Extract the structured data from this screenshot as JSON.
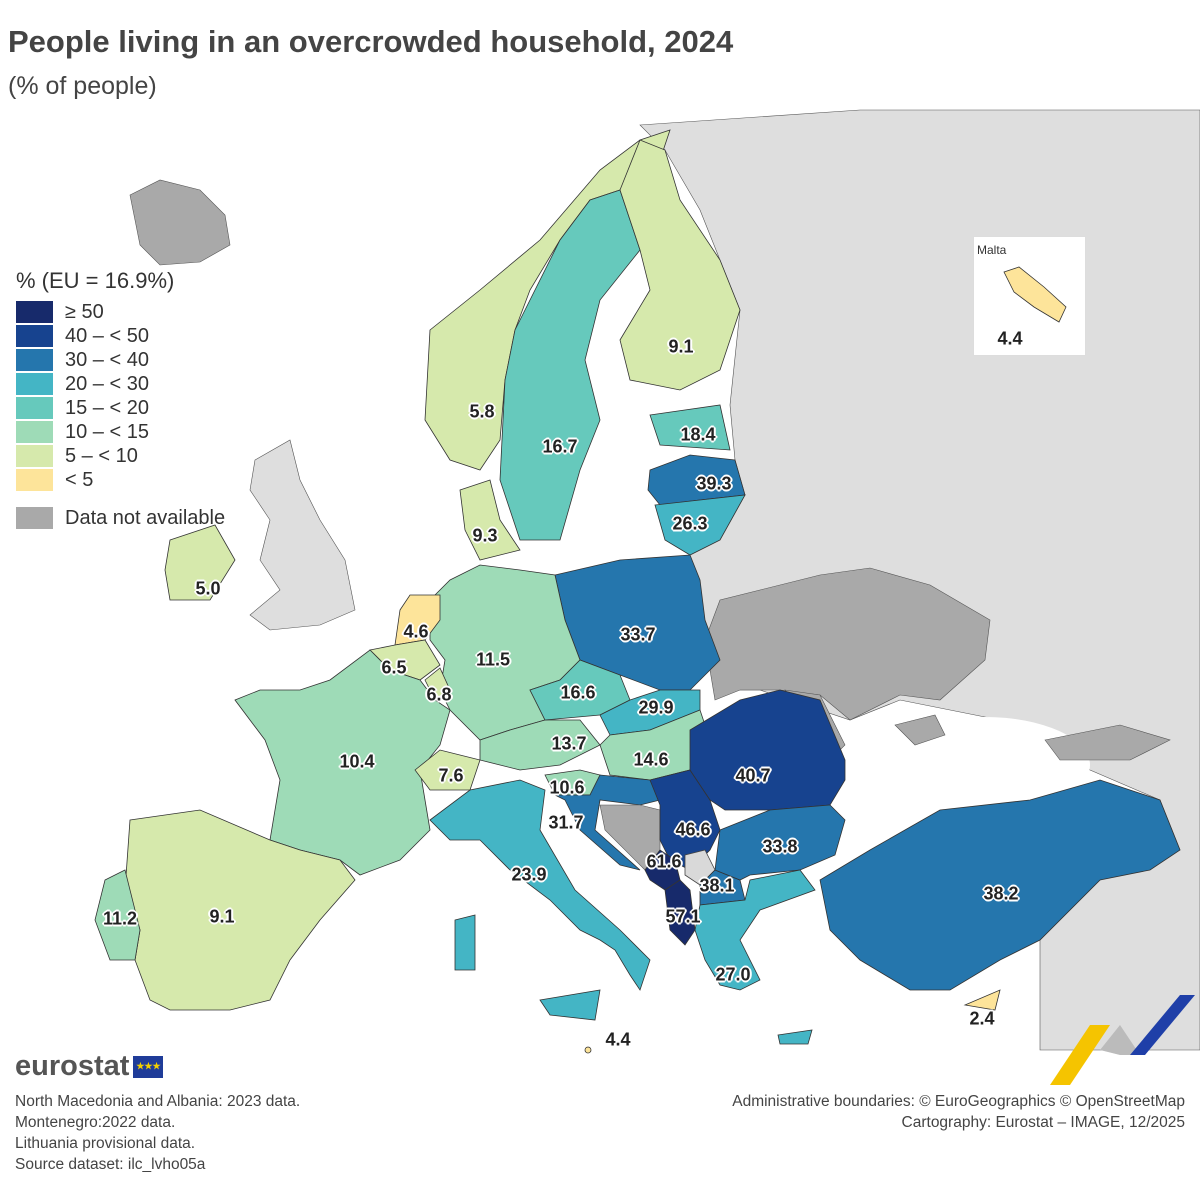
{
  "title": "People living in an overcrowded household, 2024",
  "subtitle": "(% of people)",
  "legend": {
    "title": "% (EU = 16.9%)",
    "classes": [
      {
        "label": "≥ 50",
        "color": "#172a6b"
      },
      {
        "label": "40 – < 50",
        "color": "#17438f"
      },
      {
        "label": "30 – < 40",
        "color": "#2576ad"
      },
      {
        "label": "20 – < 30",
        "color": "#44b5c5"
      },
      {
        "label": "15 – < 20",
        "color": "#66c9bc"
      },
      {
        "label": "10 – < 15",
        "color": "#9edbb7"
      },
      {
        "label": "5 – < 10",
        "color": "#d6e9ac"
      },
      {
        "label": "< 5",
        "color": "#fde49a"
      }
    ],
    "na_label": "Data not available",
    "na_color": "#a9a9a9"
  },
  "colors": {
    "non_eu_land": "#dedede",
    "sea": "#ffffff"
  },
  "countries": {
    "ireland": 5.0,
    "netherlands": 4.6,
    "belgium": 6.5,
    "luxembourg": 6.8,
    "germany": 11.5,
    "denmark": 9.3,
    "norway": 5.8,
    "sweden": 16.7,
    "finland": 9.1,
    "estonia": 18.4,
    "latvia": 39.3,
    "lithuania": 26.3,
    "poland": 33.7,
    "czechia": 16.6,
    "slovakia": 29.9,
    "austria": 13.7,
    "hungary": 14.6,
    "slovenia": 10.6,
    "croatia": 31.7,
    "serbia": 46.6,
    "romania": 40.7,
    "bulgaria": 33.8,
    "montenegro": 61.6,
    "north_macedonia": 38.1,
    "albania": 57.1,
    "greece": 27.0,
    "turkey": 38.2,
    "france": 10.4,
    "switzerland": 7.6,
    "italy": 23.9,
    "spain": 9.1,
    "portugal": 11.2,
    "malta": 4.4,
    "cyprus": 2.4
  },
  "labels": {
    "ireland": "5.0",
    "netherlands": "4.6",
    "belgium": "6.5",
    "luxembourg": "6.8",
    "germany": "11.5",
    "denmark": "9.3",
    "norway": "5.8",
    "sweden": "16.7",
    "finland": "9.1",
    "estonia": "18.4",
    "latvia": "39.3",
    "lithuania": "26.3",
    "poland": "33.7",
    "czechia": "16.6",
    "slovakia": "29.9",
    "austria": "13.7",
    "hungary": "14.6",
    "slovenia": "10.6",
    "croatia": "31.7",
    "serbia": "46.6",
    "romania": "40.7",
    "bulgaria": "33.8",
    "montenegro": "61.6",
    "north_macedonia": "38.1",
    "albania": "57.1",
    "greece": "27.0",
    "turkey": "38.2",
    "france": "10.4",
    "switzerland": "7.6",
    "italy": "23.9",
    "spain": "9.1",
    "portugal": "11.2",
    "malta": "4.4",
    "cyprus": "2.4"
  },
  "inset": {
    "title": "Malta",
    "value": "4.4"
  },
  "notes": [
    "North Macedonia and Albania: 2023 data.",
    "Montenegro:2022 data.",
    "Lithuania provisional data.",
    "Source dataset: ilc_lvho05a"
  ],
  "credits": [
    "Administrative boundaries: © EuroGeographics © OpenStreetMap",
    "Cartography: Eurostat – IMAGE, 12/2025"
  ],
  "logo": "eurostat"
}
